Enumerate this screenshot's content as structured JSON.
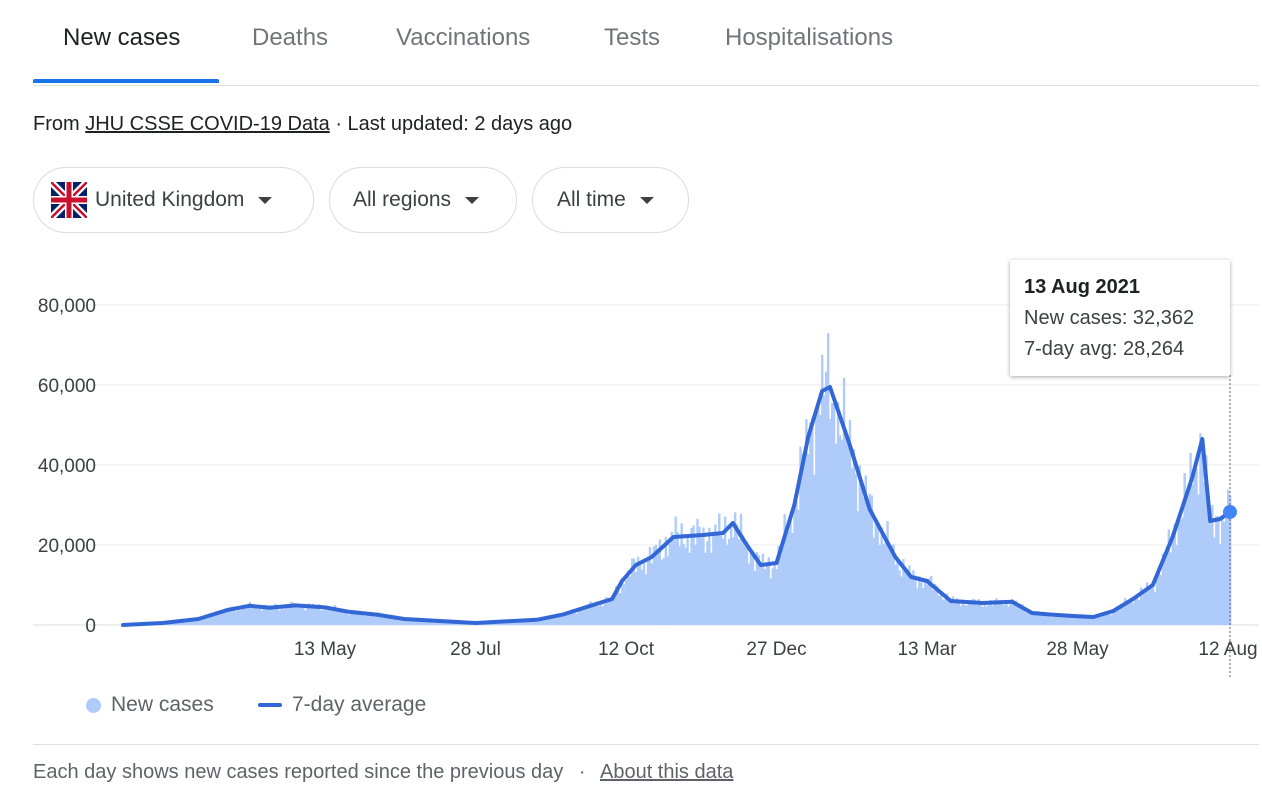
{
  "tabs": [
    {
      "label": "New cases",
      "active": true
    },
    {
      "label": "Deaths",
      "active": false
    },
    {
      "label": "Vaccinations",
      "active": false
    },
    {
      "label": "Tests",
      "active": false
    },
    {
      "label": "Hospitalisations",
      "active": false
    }
  ],
  "source": {
    "prefix": "From",
    "link": "JHU CSSE COVID-19 Data",
    "separator": "·",
    "updated": "Last updated: 2 days ago"
  },
  "filters": {
    "country": "United Kingdom",
    "country_flag_icon": "uk-flag-icon",
    "region": "All regions",
    "time": "All time"
  },
  "tooltip": {
    "date": "13 Aug 2021",
    "new_cases_line": "New cases: 32,362",
    "avg_line": "7-day avg: 28,264"
  },
  "legend": {
    "new_cases": "New cases",
    "avg": "7-day average"
  },
  "footer": {
    "text": "Each day shows new cases reported since the previous day",
    "separator": "·",
    "link": "About this data"
  },
  "colors": {
    "accent": "#1a73e8",
    "bars": "#aecbfa",
    "avg_line": "#3367d6",
    "grid": "#ebebeb"
  },
  "chart_data": {
    "type": "bar",
    "title": "",
    "xlabel": "",
    "ylabel": "",
    "ylim": [
      0,
      80000
    ],
    "yticks": [
      0,
      20000,
      40000,
      60000,
      80000
    ],
    "ytick_labels": [
      "0",
      "20,000",
      "40,000",
      "60,000",
      "80,000"
    ],
    "x_tick_labels": [
      "13 May",
      "28 Jul",
      "12 Oct",
      "27 Dec",
      "13 Mar",
      "28 May",
      "12 Aug"
    ],
    "x_start": "2020-02-01",
    "x_end": "2021-08-13",
    "grid": true,
    "legend_position": "bottom-left",
    "series": [
      {
        "name": "New cases",
        "type": "bar",
        "note": "daily bars approximate the 7-day average with day-to-day noise"
      },
      {
        "name": "7-day average",
        "type": "line",
        "points": [
          [
            "2020-02-01",
            0
          ],
          [
            "2020-02-21",
            500
          ],
          [
            "2020-03-10",
            1500
          ],
          [
            "2020-03-25",
            3800
          ],
          [
            "2020-04-05",
            4800
          ],
          [
            "2020-04-15",
            4300
          ],
          [
            "2020-04-28",
            4900
          ],
          [
            "2020-05-13",
            4400
          ],
          [
            "2020-05-25",
            3300
          ],
          [
            "2020-06-08",
            2600
          ],
          [
            "2020-06-22",
            1500
          ],
          [
            "2020-07-10",
            1000
          ],
          [
            "2020-07-28",
            500
          ],
          [
            "2020-08-12",
            900
          ],
          [
            "2020-08-28",
            1300
          ],
          [
            "2020-09-10",
            2600
          ],
          [
            "2020-09-24",
            4800
          ],
          [
            "2020-10-05",
            6500
          ],
          [
            "2020-10-10",
            11000
          ],
          [
            "2020-10-17",
            15000
          ],
          [
            "2020-10-25",
            17000
          ],
          [
            "2020-11-05",
            22000
          ],
          [
            "2020-11-20",
            22500
          ],
          [
            "2020-11-30",
            23000
          ],
          [
            "2020-12-05",
            25500
          ],
          [
            "2020-12-12",
            20000
          ],
          [
            "2020-12-19",
            15000
          ],
          [
            "2020-12-27",
            15500
          ],
          [
            "2021-01-05",
            30000
          ],
          [
            "2021-01-12",
            47000
          ],
          [
            "2021-01-19",
            58500
          ],
          [
            "2021-01-23",
            59500
          ],
          [
            "2021-02-02",
            45000
          ],
          [
            "2021-02-12",
            29000
          ],
          [
            "2021-02-25",
            17000
          ],
          [
            "2021-03-05",
            12000
          ],
          [
            "2021-03-13",
            11000
          ],
          [
            "2021-03-25",
            6000
          ],
          [
            "2021-04-10",
            5500
          ],
          [
            "2021-04-25",
            5800
          ],
          [
            "2021-05-05",
            3000
          ],
          [
            "2021-05-15",
            2600
          ],
          [
            "2021-05-28",
            2200
          ],
          [
            "2021-06-05",
            2000
          ],
          [
            "2021-06-15",
            3500
          ],
          [
            "2021-06-25",
            6500
          ],
          [
            "2021-07-05",
            10000
          ],
          [
            "2021-07-15",
            22000
          ],
          [
            "2021-07-25",
            37000
          ],
          [
            "2021-07-30",
            46500
          ],
          [
            "2021-08-03",
            26000
          ],
          [
            "2021-08-08",
            26500
          ],
          [
            "2021-08-13",
            28264
          ]
        ]
      }
    ],
    "highlight": {
      "x": "2021-08-13",
      "new_cases": 32362,
      "avg": 28264
    }
  }
}
